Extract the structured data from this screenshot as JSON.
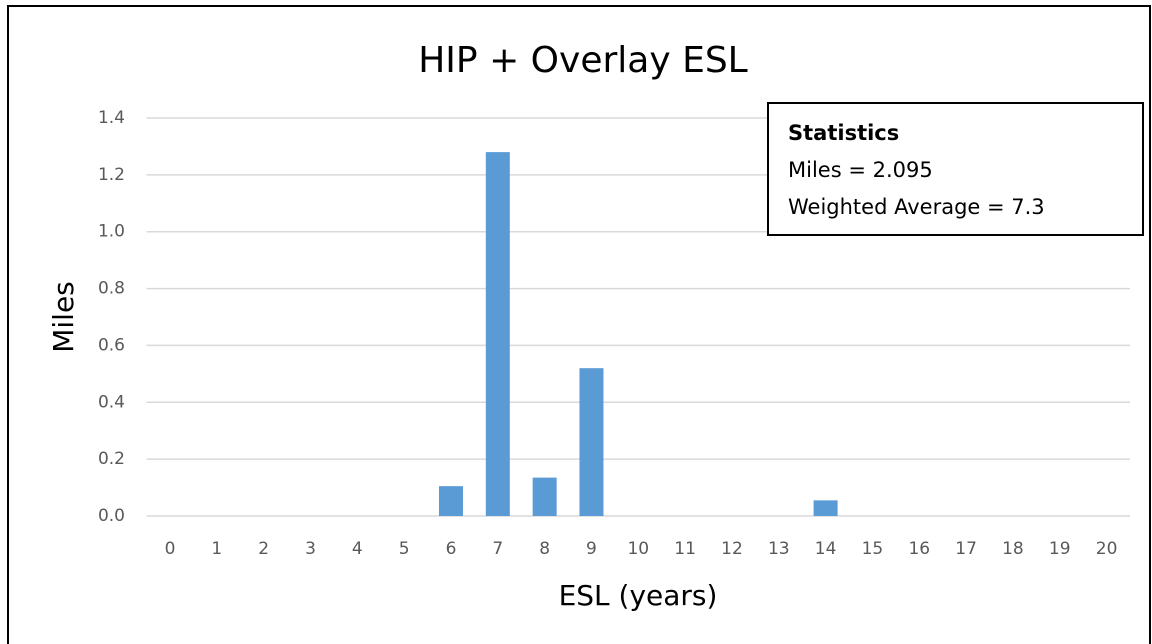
{
  "chart_data": {
    "type": "bar",
    "title": "HIP + Overlay ESL",
    "x_label": "ESL (years)",
    "y_label": "Miles",
    "categories": [
      "0",
      "1",
      "2",
      "3",
      "4",
      "5",
      "6",
      "7",
      "8",
      "9",
      "10",
      "11",
      "12",
      "13",
      "14",
      "15",
      "16",
      "17",
      "18",
      "19",
      "20"
    ],
    "values": [
      0,
      0,
      0,
      0,
      0,
      0,
      0.105,
      1.28,
      0.135,
      0.52,
      0,
      0,
      0,
      0,
      0.055,
      0,
      0,
      0,
      0,
      0,
      0
    ],
    "color": "#5b9bd5",
    "ylim": [
      0,
      1.4
    ],
    "yticks": [
      {
        "value": 0,
        "label": "0.0"
      },
      0.2,
      0.4,
      0.6,
      0.8,
      {
        "value": 1,
        "label": "1.0"
      },
      1.2,
      1.4
    ],
    "grid": true,
    "annotation": {
      "title": "Statistics",
      "lines": [
        "Miles = 2.095",
        "Weighted Average = 7.3"
      ]
    }
  }
}
